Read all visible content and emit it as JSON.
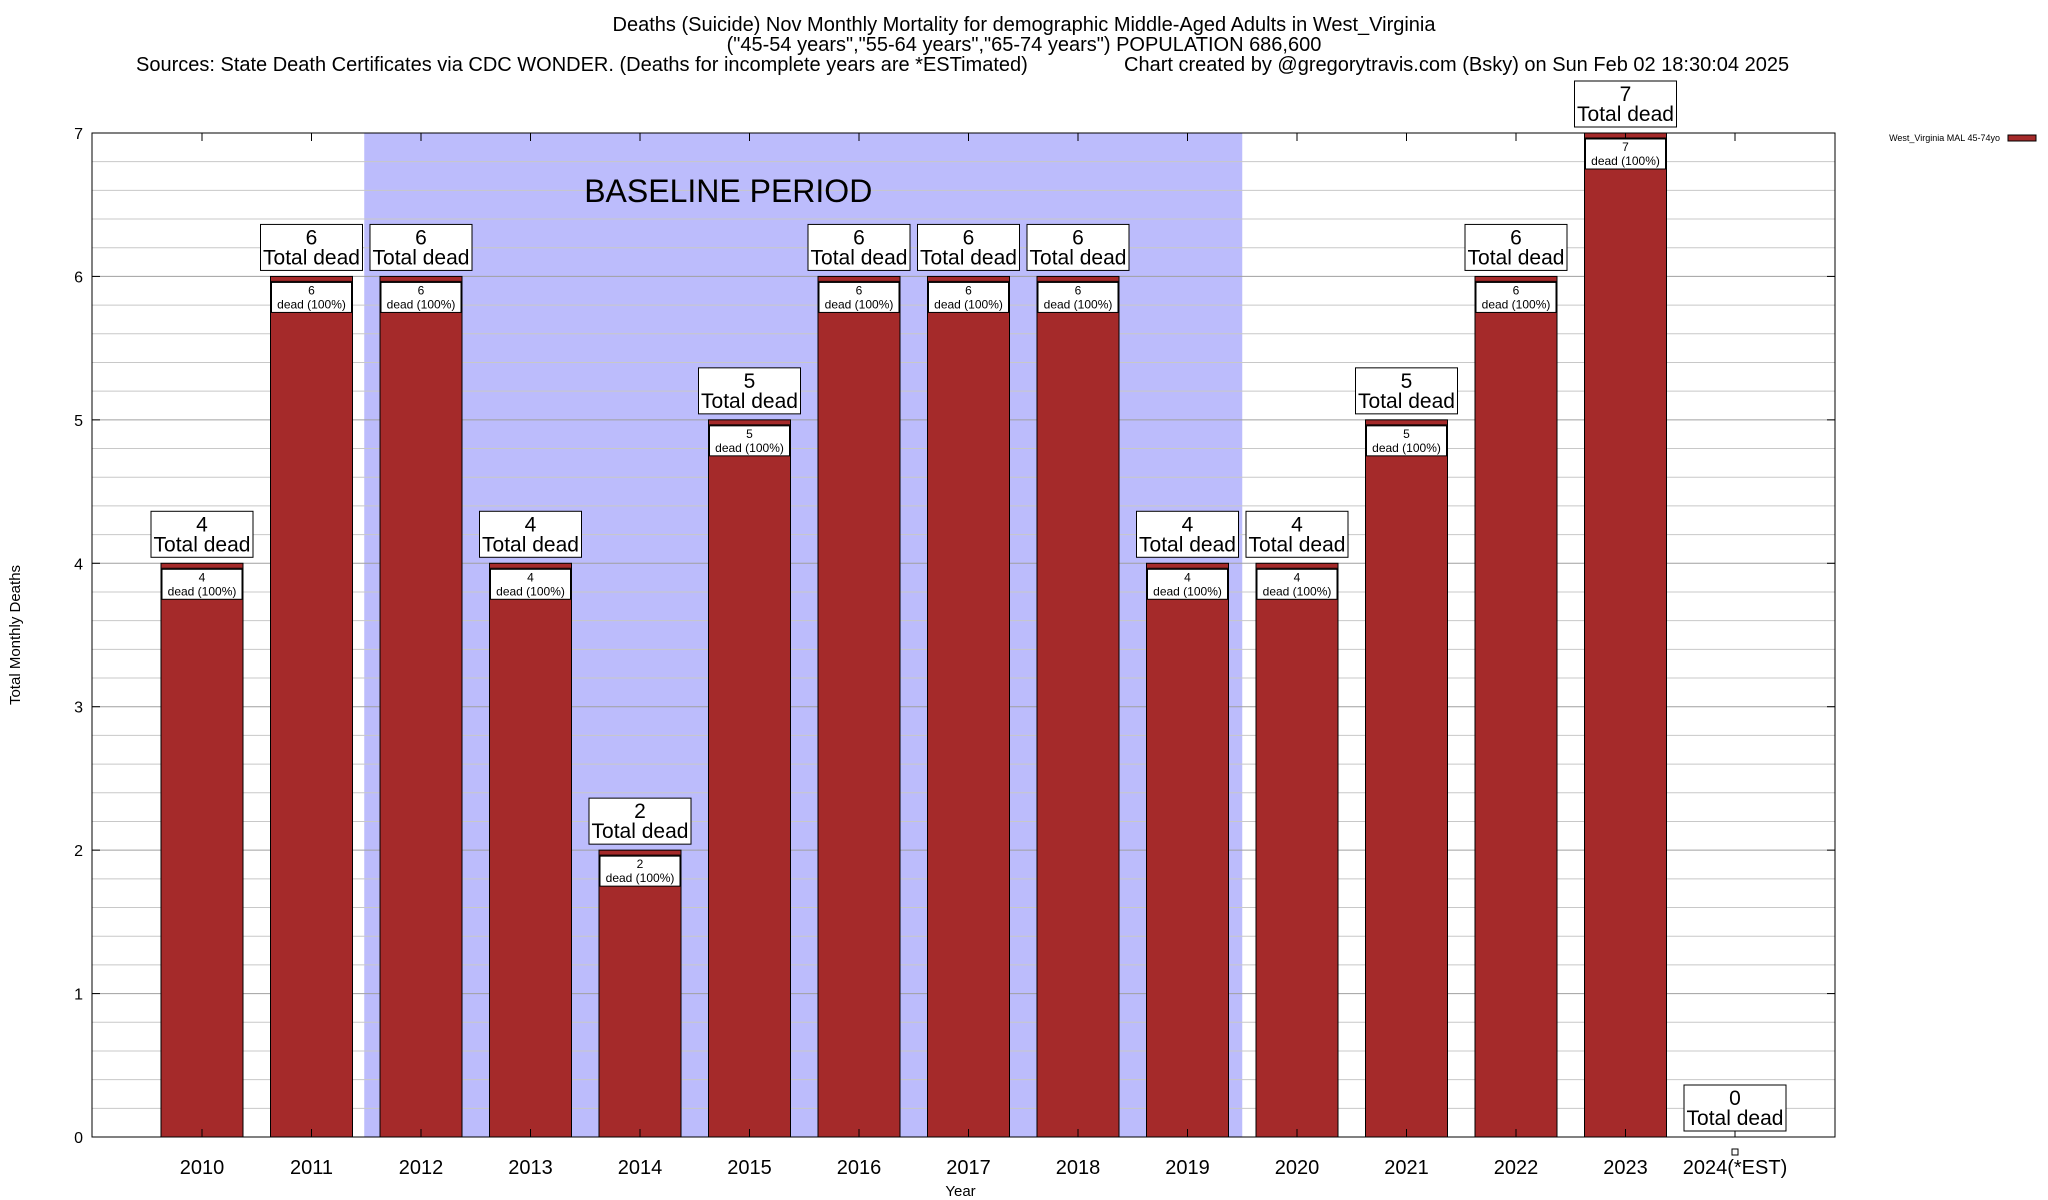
{
  "title": {
    "line1": "Deaths (Suicide) Nov Monthly Mortality for demographic Middle-Aged Adults in West_Virginia",
    "line2": "(\"45-54 years\",\"55-64 years\",\"65-74 years\") POPULATION 686,600",
    "sources": "Sources: State Death Certificates via CDC WONDER. (Deaths for incomplete years are *ESTimated)",
    "credit": "Chart created by @gregorytravis.com (Bsky) on Sun Feb 02 18:30:04 2025"
  },
  "colors": {
    "bar": "#a52a2a",
    "bar_outline": "#000000",
    "baseline_shade": "#bcbcfc"
  },
  "chart_data": {
    "type": "bar",
    "xlabel": "Year",
    "ylabel": "Total Monthly Deaths",
    "ylim": [
      0,
      7
    ],
    "yticks": [
      0,
      1,
      2,
      3,
      4,
      5,
      6,
      7
    ],
    "grid": true,
    "legend": {
      "position": "top-right",
      "label": "West_Virginia MAL 45-74yo"
    },
    "categories": [
      "2010",
      "2011",
      "2012",
      "2013",
      "2014",
      "2015",
      "2016",
      "2017",
      "2018",
      "2019",
      "2020",
      "2021",
      "2022",
      "2023",
      "2024(*EST)"
    ],
    "series": [
      {
        "name": "West_Virginia MAL 45-74yo",
        "values": [
          4,
          6,
          6,
          4,
          2,
          5,
          6,
          6,
          6,
          4,
          4,
          5,
          6,
          7,
          0
        ]
      }
    ],
    "total_label_text": "Total dead",
    "inner_label_text": "dead (100%)",
    "baseline": {
      "label": "BASELINE PERIOD",
      "from": "2012",
      "to": "2019"
    }
  }
}
